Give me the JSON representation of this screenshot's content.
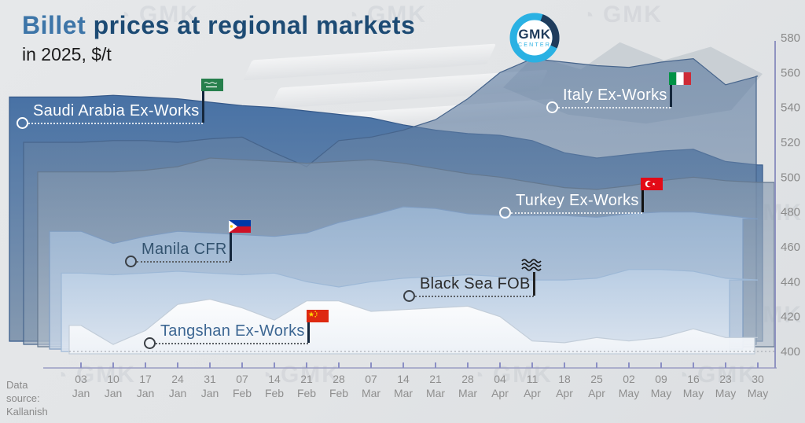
{
  "header": {
    "title_accent": "Billet",
    "title_rest": " prices at regional markets",
    "subtitle": "in 2025, $/t"
  },
  "logo": {
    "top": "GMK",
    "bottom": "CENTER"
  },
  "watermark": {
    "text": "GMK"
  },
  "source_note": {
    "text": "Data source: Kallanish"
  },
  "chart_data": {
    "type": "area",
    "title": "Billet prices at regional markets in 2025, $/t",
    "unit": "$/t",
    "ylim": [
      400,
      580
    ],
    "y_ticks": [
      580,
      560,
      540,
      520,
      500,
      480,
      460,
      440,
      420,
      400
    ],
    "grid": false,
    "legend_position": "on-chart labels with flags",
    "categories": [
      "03 Jan",
      "10 Jan",
      "17 Jan",
      "24 Jan",
      "31 Jan",
      "07 Feb",
      "14 Feb",
      "21 Feb",
      "28 Feb",
      "07 Mar",
      "14 Mar",
      "21 Mar",
      "28 Mar",
      "04 Apr",
      "11 Apr",
      "18 Apr",
      "25 Apr",
      "02 May",
      "09 May",
      "16 May",
      "23 May",
      "30 May"
    ],
    "series": [
      {
        "id": "saudi-arabia",
        "name": "Saudi Arabia Ex-Works",
        "flag": "saudi-arabia-flag",
        "color_top": "#3f6ba1",
        "color_bottom": "#8095ad",
        "stroke": "#35598a",
        "opacity": 0.95,
        "values": [
          546,
          547,
          546,
          545,
          543,
          541,
          540,
          538,
          536,
          534,
          530,
          527,
          525,
          524,
          521,
          514,
          511,
          513,
          515,
          516,
          509,
          507
        ]
      },
      {
        "id": "italy",
        "name": "Italy Ex-Works",
        "flag": "italy-flag",
        "color_top": "#54749c",
        "color_bottom": "#8da0b5",
        "stroke": "#47658c",
        "opacity": 0.6,
        "values": [
          520,
          521,
          521,
          520,
          522,
          523,
          514,
          506,
          521,
          523,
          527,
          533,
          545,
          560,
          568,
          566,
          564,
          563,
          566,
          568,
          553,
          558
        ]
      },
      {
        "id": "turkey",
        "name": "Turkey Ex-Works",
        "flag": "turkey-flag",
        "color_top": "#7e93ab",
        "color_bottom": "#b3bfcc",
        "stroke": "#64788f",
        "opacity": 0.65,
        "values": [
          503,
          503,
          504,
          506,
          511,
          510,
          509,
          508,
          509,
          510,
          508,
          505,
          502,
          500,
          497,
          494,
          493,
          495,
          498,
          500,
          498,
          497
        ]
      },
      {
        "id": "manila",
        "name": "Manila CFR",
        "flag": "philippines-flag",
        "color_top": "#9ebad8",
        "color_bottom": "#c6d4e6",
        "stroke": "#7f9cc0",
        "opacity": 0.8,
        "values": [
          469,
          462,
          466,
          469,
          468,
          467,
          466,
          468,
          474,
          478,
          483,
          482,
          479,
          478,
          478,
          478,
          477,
          479,
          480,
          480,
          478,
          476
        ]
      },
      {
        "id": "black-sea",
        "name": "Black Sea FOB",
        "flag": "waves-icon",
        "color_top": "#bcd0e6",
        "color_bottom": "#dfe7f1",
        "stroke": "#9db8d6",
        "opacity": 0.85,
        "values": [
          445,
          444,
          445,
          446,
          445,
          444,
          445,
          440,
          437,
          440,
          442,
          443,
          444,
          443,
          441,
          441,
          442,
          447,
          447,
          446,
          442,
          441
        ]
      },
      {
        "id": "tangshan",
        "name": "Tangshan Ex-Works",
        "flag": "china-flag",
        "color_top": "#ffffff",
        "color_bottom": "#eef2f7",
        "stroke": "#c2cdd9",
        "opacity": 0.95,
        "values": [
          415,
          404,
          412,
          427,
          430,
          425,
          418,
          429,
          429,
          423,
          424,
          425,
          426,
          420,
          406,
          405,
          408,
          406,
          408,
          413,
          408,
          408
        ]
      }
    ]
  }
}
